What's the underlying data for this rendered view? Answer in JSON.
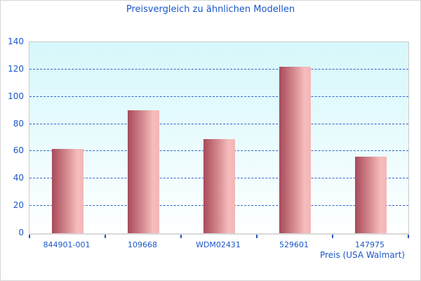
{
  "chart_data": {
    "type": "bar",
    "title": "Preisvergleich zu ähnlichen Modellen",
    "categories": [
      "844901-001",
      "109668",
      "WDM02431",
      "529601",
      "147975"
    ],
    "values": [
      62,
      90,
      69,
      122,
      56
    ],
    "xlabel": "Preis (USA Walmart)",
    "ylabel": "",
    "ylim": [
      0,
      140
    ],
    "yticks": [
      0,
      20,
      40,
      60,
      80,
      100,
      120,
      140
    ],
    "grid": "horizontal-dashed",
    "legend": "none",
    "colors": {
      "title_text": "#1b57c8",
      "axis_text": "#1b57c8",
      "gridline": "#3465c8",
      "tick": "#2a58c0",
      "bar_gradient_dark": "#a74b5b",
      "bar_gradient_light": "#f6bcbc",
      "plot_bg_top": "#d7f7fa",
      "plot_bg_bottom": "#feffff",
      "plot_border": "#cbcbcb"
    }
  }
}
